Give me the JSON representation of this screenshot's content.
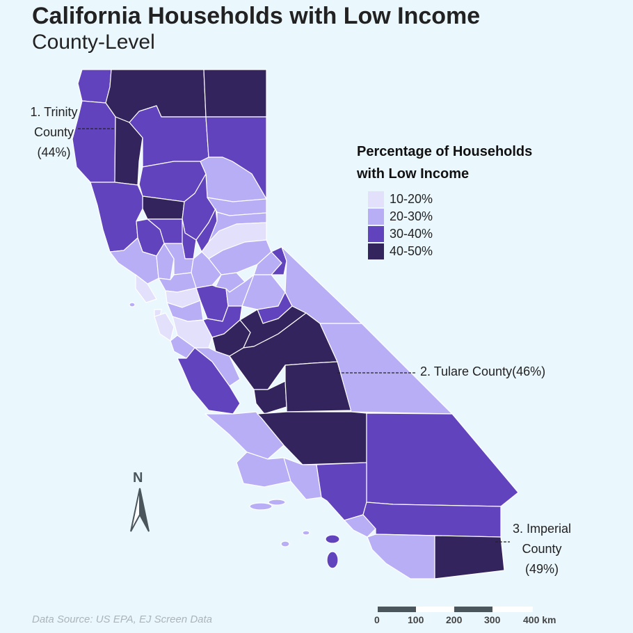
{
  "title": "California Households with Low Income",
  "subtitle": "County-Level",
  "legend": {
    "title_line1": "Percentage of Households",
    "title_line2": "with Low Income",
    "items": [
      {
        "label": "10-20%",
        "color": "#e2e0fa"
      },
      {
        "label": "20-30%",
        "color": "#b7aef6"
      },
      {
        "label": "30-40%",
        "color": "#6143be"
      },
      {
        "label": "40-50%",
        "color": "#33245e"
      }
    ]
  },
  "annotations": {
    "trinity": {
      "line1": "1. Trinity",
      "line2": "County",
      "line3": "(44%)"
    },
    "tulare": {
      "line1": "2. Tulare County(46%)"
    },
    "imperial": {
      "line1": "3. Imperial",
      "line2": "County",
      "line3": "(49%)"
    }
  },
  "north_arrow": {
    "label": "N"
  },
  "scale_bar": {
    "labels": [
      "0",
      "100",
      "200",
      "300",
      "400 km"
    ]
  },
  "source": "Data Source: US EPA, EJ Screen Data",
  "colors": {
    "background": "#eaf7fd",
    "border": "#ffffff"
  }
}
